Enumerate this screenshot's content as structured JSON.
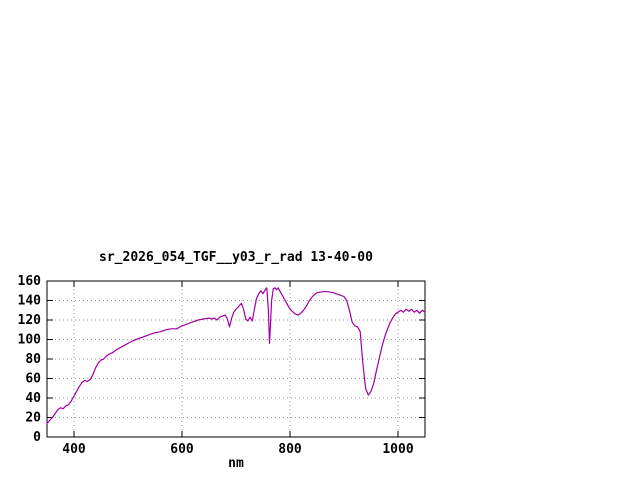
{
  "window": {
    "background": "#ffffff"
  },
  "chart_data": {
    "type": "line",
    "title": "sr_2026_054_TGF__y03_r_rad 13-40-00",
    "xlabel": "nm",
    "ylabel": "",
    "xlim": [
      350,
      1050
    ],
    "ylim": [
      0,
      160
    ],
    "xticks": [
      400,
      600,
      800,
      1000
    ],
    "yticks": [
      0,
      20,
      40,
      60,
      80,
      100,
      120,
      140,
      160
    ],
    "grid": true,
    "legend": "none",
    "line_color": "#a000a0",
    "grid_color": "#9a9a9a",
    "axis_color": "#000000",
    "series": [
      {
        "name": "sr_2026_054_TGF__y03_r_rad",
        "points": [
          [
            350,
            14
          ],
          [
            355,
            17
          ],
          [
            360,
            20
          ],
          [
            365,
            24
          ],
          [
            370,
            28
          ],
          [
            375,
            30
          ],
          [
            380,
            29
          ],
          [
            385,
            32
          ],
          [
            390,
            33
          ],
          [
            395,
            37
          ],
          [
            400,
            42
          ],
          [
            405,
            47
          ],
          [
            410,
            52
          ],
          [
            415,
            56
          ],
          [
            420,
            58
          ],
          [
            425,
            57
          ],
          [
            430,
            59
          ],
          [
            435,
            64
          ],
          [
            440,
            71
          ],
          [
            445,
            76
          ],
          [
            450,
            79
          ],
          [
            455,
            80
          ],
          [
            460,
            83
          ],
          [
            465,
            85
          ],
          [
            470,
            86
          ],
          [
            480,
            90
          ],
          [
            490,
            93
          ],
          [
            500,
            96
          ],
          [
            510,
            99
          ],
          [
            520,
            101
          ],
          [
            530,
            103
          ],
          [
            540,
            105
          ],
          [
            550,
            107
          ],
          [
            560,
            108
          ],
          [
            570,
            110
          ],
          [
            580,
            111
          ],
          [
            590,
            111
          ],
          [
            600,
            114
          ],
          [
            610,
            116
          ],
          [
            620,
            118
          ],
          [
            630,
            120
          ],
          [
            640,
            121
          ],
          [
            650,
            122
          ],
          [
            655,
            121
          ],
          [
            660,
            122
          ],
          [
            665,
            120
          ],
          [
            670,
            123
          ],
          [
            675,
            124
          ],
          [
            680,
            125
          ],
          [
            684,
            121
          ],
          [
            688,
            113
          ],
          [
            692,
            122
          ],
          [
            696,
            128
          ],
          [
            700,
            131
          ],
          [
            705,
            134
          ],
          [
            710,
            137
          ],
          [
            714,
            131
          ],
          [
            718,
            121
          ],
          [
            722,
            119
          ],
          [
            726,
            123
          ],
          [
            730,
            119
          ],
          [
            734,
            131
          ],
          [
            738,
            142
          ],
          [
            742,
            147
          ],
          [
            746,
            150
          ],
          [
            750,
            147
          ],
          [
            754,
            151
          ],
          [
            757,
            153
          ],
          [
            760,
            130
          ],
          [
            762,
            96
          ],
          [
            764,
            118
          ],
          [
            766,
            140
          ],
          [
            769,
            152
          ],
          [
            772,
            153
          ],
          [
            775,
            151
          ],
          [
            778,
            153
          ],
          [
            781,
            150
          ],
          [
            784,
            147
          ],
          [
            787,
            144
          ],
          [
            790,
            141
          ],
          [
            794,
            137
          ],
          [
            798,
            133
          ],
          [
            802,
            130
          ],
          [
            806,
            128
          ],
          [
            810,
            126
          ],
          [
            815,
            125
          ],
          [
            820,
            127
          ],
          [
            825,
            130
          ],
          [
            830,
            134
          ],
          [
            835,
            139
          ],
          [
            840,
            143
          ],
          [
            845,
            146
          ],
          [
            850,
            148
          ],
          [
            860,
            149
          ],
          [
            870,
            149
          ],
          [
            880,
            148
          ],
          [
            890,
            146
          ],
          [
            900,
            144
          ],
          [
            905,
            140
          ],
          [
            910,
            130
          ],
          [
            915,
            118
          ],
          [
            920,
            114
          ],
          [
            925,
            113
          ],
          [
            930,
            108
          ],
          [
            935,
            75
          ],
          [
            940,
            50
          ],
          [
            945,
            43
          ],
          [
            950,
            47
          ],
          [
            955,
            55
          ],
          [
            960,
            68
          ],
          [
            965,
            80
          ],
          [
            970,
            92
          ],
          [
            975,
            102
          ],
          [
            980,
            110
          ],
          [
            985,
            117
          ],
          [
            990,
            122
          ],
          [
            995,
            126
          ],
          [
            1000,
            128
          ],
          [
            1005,
            130
          ],
          [
            1010,
            128
          ],
          [
            1015,
            131
          ],
          [
            1020,
            129
          ],
          [
            1025,
            131
          ],
          [
            1030,
            128
          ],
          [
            1035,
            130
          ],
          [
            1040,
            127
          ],
          [
            1045,
            130
          ],
          [
            1050,
            128
          ]
        ]
      }
    ]
  }
}
